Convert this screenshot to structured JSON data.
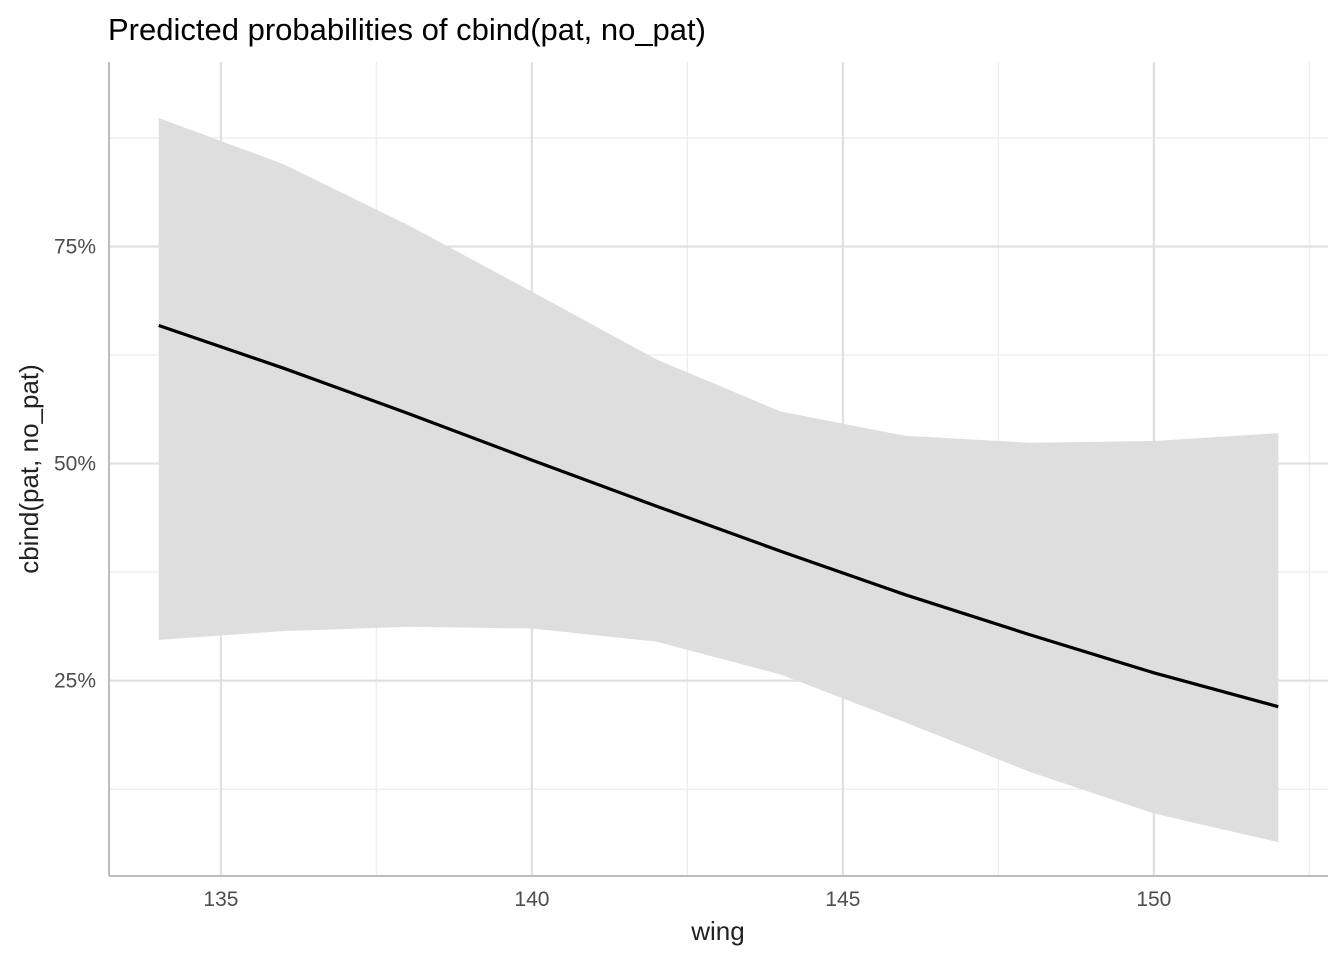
{
  "chart_data": {
    "type": "line",
    "title": "Predicted probabilities of cbind(pat, no_pat)",
    "xlabel": "wing",
    "ylabel": "cbind(pat, no_pat)",
    "xlim": [
      133.2,
      152.8
    ],
    "ylim": [
      0.025,
      0.9625
    ],
    "x_ticks": [
      135,
      140,
      145,
      150
    ],
    "x_tick_labels": [
      "135",
      "140",
      "145",
      "150"
    ],
    "x_minor_ticks": [
      137.5,
      142.5,
      147.5,
      152.5
    ],
    "y_ticks": [
      0.25,
      0.5,
      0.75
    ],
    "y_tick_labels": [
      "25%",
      "50%",
      "75%"
    ],
    "y_minor_ticks": [
      0.125,
      0.375,
      0.625,
      0.875
    ],
    "grid": true,
    "series": [
      {
        "name": "predicted",
        "color": "#000000",
        "x": [
          134,
          136,
          138,
          140,
          142,
          144,
          146,
          148,
          150,
          152
        ],
        "values": [
          0.659,
          0.61,
          0.558,
          0.504,
          0.451,
          0.399,
          0.349,
          0.303,
          0.259,
          0.22
        ],
        "ci_low": [
          0.297,
          0.307,
          0.312,
          0.31,
          0.295,
          0.257,
          0.202,
          0.145,
          0.097,
          0.064
        ],
        "ci_high": [
          0.898,
          0.845,
          0.775,
          0.698,
          0.62,
          0.56,
          0.532,
          0.524,
          0.526,
          0.535
        ]
      }
    ],
    "ribbon_color": "#dedede"
  }
}
